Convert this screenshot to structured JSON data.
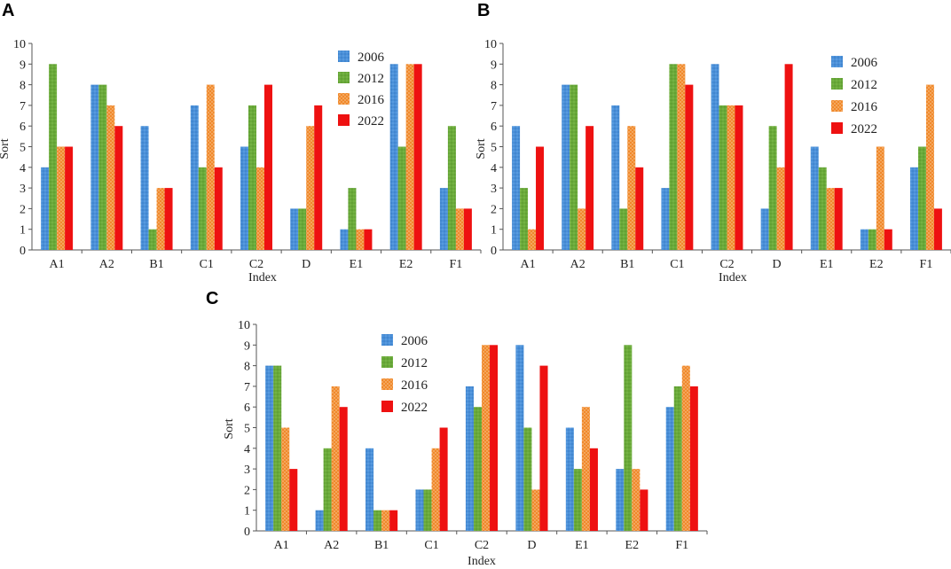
{
  "colors": {
    "2006": "#4a90d9",
    "2012": "#6aaa3a",
    "2016": "#f0892b",
    "2022": "#ee1111",
    "axis": "#555555"
  },
  "chart_data": [
    {
      "panel_label": "A",
      "type": "bar",
      "xlabel": "Index",
      "ylabel": "Sort",
      "ylim": [
        0,
        10
      ],
      "yticks": [
        "0",
        "1",
        "2",
        "3",
        "4",
        "5",
        "6",
        "7",
        "8",
        "9",
        "10"
      ],
      "categories": [
        "A1",
        "A2",
        "B1",
        "C1",
        "C2",
        "D",
        "E1",
        "E2",
        "F1"
      ],
      "legend_position": "top-right",
      "series": [
        {
          "name": "2006",
          "values": [
            4,
            8,
            6,
            7,
            5,
            2,
            1,
            9,
            3
          ]
        },
        {
          "name": "2012",
          "values": [
            9,
            8,
            1,
            4,
            7,
            2,
            3,
            5,
            6
          ]
        },
        {
          "name": "2016",
          "values": [
            5,
            7,
            3,
            8,
            4,
            6,
            1,
            9,
            2
          ]
        },
        {
          "name": "2022",
          "values": [
            5,
            6,
            3,
            4,
            8,
            7,
            1,
            9,
            2
          ]
        }
      ]
    },
    {
      "panel_label": "B",
      "type": "bar",
      "xlabel": "Index",
      "ylabel": "Sort",
      "ylim": [
        0,
        10
      ],
      "yticks": [
        "0",
        "1",
        "2",
        "3",
        "4",
        "5",
        "6",
        "7",
        "8",
        "9",
        "10"
      ],
      "categories": [
        "A1",
        "A2",
        "B1",
        "C1",
        "C2",
        "D",
        "E1",
        "E2",
        "F1"
      ],
      "legend_position": "top-right",
      "series": [
        {
          "name": "2006",
          "values": [
            6,
            8,
            7,
            3,
            9,
            2,
            5,
            1,
            4
          ]
        },
        {
          "name": "2012",
          "values": [
            3,
            8,
            2,
            9,
            7,
            6,
            4,
            1,
            5
          ]
        },
        {
          "name": "2016",
          "values": [
            1,
            2,
            6,
            9,
            7,
            4,
            3,
            5,
            8
          ]
        },
        {
          "name": "2022",
          "values": [
            5,
            6,
            4,
            8,
            7,
            9,
            3,
            1,
            2
          ]
        }
      ]
    },
    {
      "panel_label": "C",
      "type": "bar",
      "xlabel": "Index",
      "ylabel": "Sort",
      "ylim": [
        0,
        10
      ],
      "yticks": [
        "0",
        "1",
        "2",
        "3",
        "4",
        "5",
        "6",
        "7",
        "8",
        "9",
        "10"
      ],
      "categories": [
        "A1",
        "A2",
        "B1",
        "C1",
        "C2",
        "D",
        "E1",
        "E2",
        "F1"
      ],
      "legend_position": "top-left",
      "series": [
        {
          "name": "2006",
          "values": [
            8,
            1,
            4,
            2,
            7,
            9,
            5,
            3,
            6
          ]
        },
        {
          "name": "2012",
          "values": [
            8,
            4,
            1,
            2,
            6,
            5,
            3,
            9,
            7
          ]
        },
        {
          "name": "2016",
          "values": [
            5,
            7,
            1,
            4,
            9,
            2,
            6,
            3,
            8
          ]
        },
        {
          "name": "2022",
          "values": [
            3,
            6,
            1,
            5,
            9,
            8,
            4,
            2,
            7
          ]
        }
      ]
    }
  ]
}
